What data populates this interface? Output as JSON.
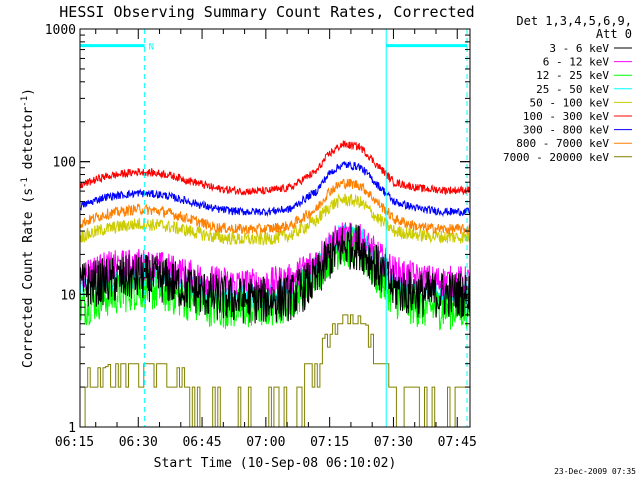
{
  "chart_data": {
    "type": "line",
    "title": "HESSI Observing Summary Count Rates, Corrected",
    "xlabel": "Start Time (10-Sep-08 06:10:02)",
    "ylabel_main": "Corrected Count Rate (s",
    "ylabel_sup1": "-1",
    "ylabel_mid": " detector",
    "ylabel_sup2": "-1",
    "ylabel_end": ")",
    "yscale": "log",
    "ylim": [
      1,
      1000
    ],
    "xlim_minutes": [
      6.3,
      98.0
    ],
    "x_ticks": [
      {
        "minute": 5,
        "label": "06:15"
      },
      {
        "minute": 20,
        "label": "06:30"
      },
      {
        "minute": 35,
        "label": "06:45"
      },
      {
        "minute": 50,
        "label": "07:00"
      },
      {
        "minute": 65,
        "label": "07:15"
      },
      {
        "minute": 80,
        "label": "07:30"
      },
      {
        "minute": 95,
        "label": "07:45"
      }
    ],
    "y_ticks": [
      {
        "value": 1,
        "label": "1"
      },
      {
        "value": 10,
        "label": "10"
      },
      {
        "value": 100,
        "label": "100"
      },
      {
        "value": 1000,
        "label": "1000"
      }
    ],
    "legend": {
      "placement": "right",
      "header": [
        "Det 1,3,4,5,6,9,",
        "Att 0"
      ]
    },
    "series": [
      {
        "name": "3 - 6 keV",
        "color": "#000000",
        "x": [
          6.3,
          12,
          20,
          26,
          32,
          38,
          44,
          50,
          56,
          62,
          65,
          68,
          72,
          76,
          80,
          86,
          92,
          98
        ],
        "y": [
          11.5,
          12.5,
          13.5,
          12.8,
          11,
          9.5,
          9,
          9,
          9.5,
          13,
          19,
          23,
          23,
          16,
          11,
          10,
          10,
          10
        ]
      },
      {
        "name": "6 - 12 keV",
        "color": "#ff00ff",
        "x": [
          6.3,
          12,
          20,
          26,
          32,
          38,
          44,
          50,
          56,
          62,
          65,
          68,
          72,
          76,
          80,
          86,
          92,
          98
        ],
        "y": [
          14,
          16,
          17,
          16,
          14,
          12.5,
          12,
          12,
          13,
          18,
          24,
          27,
          26,
          20,
          15,
          13,
          12.5,
          12.5
        ]
      },
      {
        "name": "12 - 25 keV",
        "color": "#00ff00",
        "x": [
          6.3,
          12,
          20,
          26,
          32,
          38,
          44,
          50,
          56,
          62,
          65,
          68,
          72,
          76,
          80,
          86,
          92,
          98
        ],
        "y": [
          8,
          9.5,
          11,
          10.5,
          9,
          8,
          7.8,
          8,
          9,
          14,
          20,
          23,
          22,
          14,
          9.5,
          8,
          7.8,
          7.8
        ]
      },
      {
        "name": "25 - 50 keV",
        "color": "#00ffff",
        "x": [
          6.3,
          12,
          20,
          26,
          32,
          38,
          44,
          50,
          56,
          62,
          65,
          68,
          72,
          76,
          80,
          86,
          92,
          98
        ],
        "y": [
          11,
          12.5,
          13.5,
          13,
          11.5,
          10,
          9.5,
          9.5,
          11,
          16,
          23,
          28,
          27,
          18,
          12,
          10.5,
          10,
          10
        ]
      },
      {
        "name": "50 - 100 keV",
        "color": "#cccc00",
        "x": [
          6.3,
          12,
          20,
          26,
          32,
          38,
          44,
          50,
          56,
          62,
          65,
          68,
          72,
          76,
          80,
          86,
          92,
          98
        ],
        "y": [
          27,
          31,
          34,
          33,
          30,
          27,
          26,
          26,
          28,
          36,
          46,
          52,
          50,
          38,
          30,
          28,
          27,
          27
        ]
      },
      {
        "name": "100 - 300 keV",
        "color": "#ff0000",
        "x": [
          6.3,
          12,
          20,
          26,
          32,
          38,
          44,
          50,
          56,
          62,
          65,
          68,
          72,
          76,
          80,
          86,
          92,
          98
        ],
        "y": [
          66,
          77,
          84,
          81,
          72,
          63,
          60,
          60,
          64,
          85,
          115,
          135,
          130,
          95,
          70,
          63,
          61,
          61
        ]
      },
      {
        "name": "300 - 800 keV",
        "color": "#0000ff",
        "x": [
          6.3,
          12,
          20,
          26,
          32,
          38,
          44,
          50,
          56,
          62,
          65,
          68,
          72,
          76,
          80,
          86,
          92,
          98
        ],
        "y": [
          46,
          54,
          58,
          56,
          50,
          44,
          42,
          42,
          44,
          60,
          82,
          95,
          92,
          68,
          50,
          44,
          42,
          42
        ]
      },
      {
        "name": "800 - 7000 keV",
        "color": "#ff8000",
        "x": [
          6.3,
          12,
          20,
          26,
          32,
          38,
          44,
          50,
          56,
          62,
          65,
          68,
          72,
          76,
          80,
          86,
          92,
          98
        ],
        "y": [
          34,
          40,
          44,
          42,
          37,
          32,
          31,
          31,
          33,
          44,
          60,
          69,
          67,
          50,
          37,
          32,
          31,
          31
        ]
      },
      {
        "name": "7000 - 20000 keV",
        "color": "#808000",
        "x": [
          6.3,
          8,
          12,
          16,
          20,
          24,
          28,
          32,
          36,
          40,
          48,
          54,
          58,
          62,
          65,
          68,
          72,
          76,
          80,
          84,
          88,
          92,
          96,
          98
        ],
        "y": [
          1,
          2,
          2,
          2.7,
          2.7,
          2.7,
          2,
          2,
          1,
          1,
          1,
          1,
          2,
          3,
          5,
          7,
          6,
          3.5,
          2,
          2,
          1,
          1,
          2,
          2
        ]
      }
    ],
    "vertical_markers": [
      {
        "minute": 6.3,
        "style": "solid",
        "color": "#00ffff"
      },
      {
        "minute": 21.5,
        "style": "dashed",
        "color": "#00ffff"
      },
      {
        "minute": 78.3,
        "style": "solid",
        "color": "#00ffff"
      },
      {
        "minute": 97.3,
        "style": "dashed",
        "color": "#00ffff"
      }
    ],
    "flag_bars": [
      {
        "x1": 6.3,
        "x2": 21.5,
        "value": 750,
        "label": "N"
      },
      {
        "x1": 78.3,
        "x2": 97.3,
        "value": 750,
        "label": ""
      }
    ],
    "footer": "23-Dec-2009 07:35"
  }
}
